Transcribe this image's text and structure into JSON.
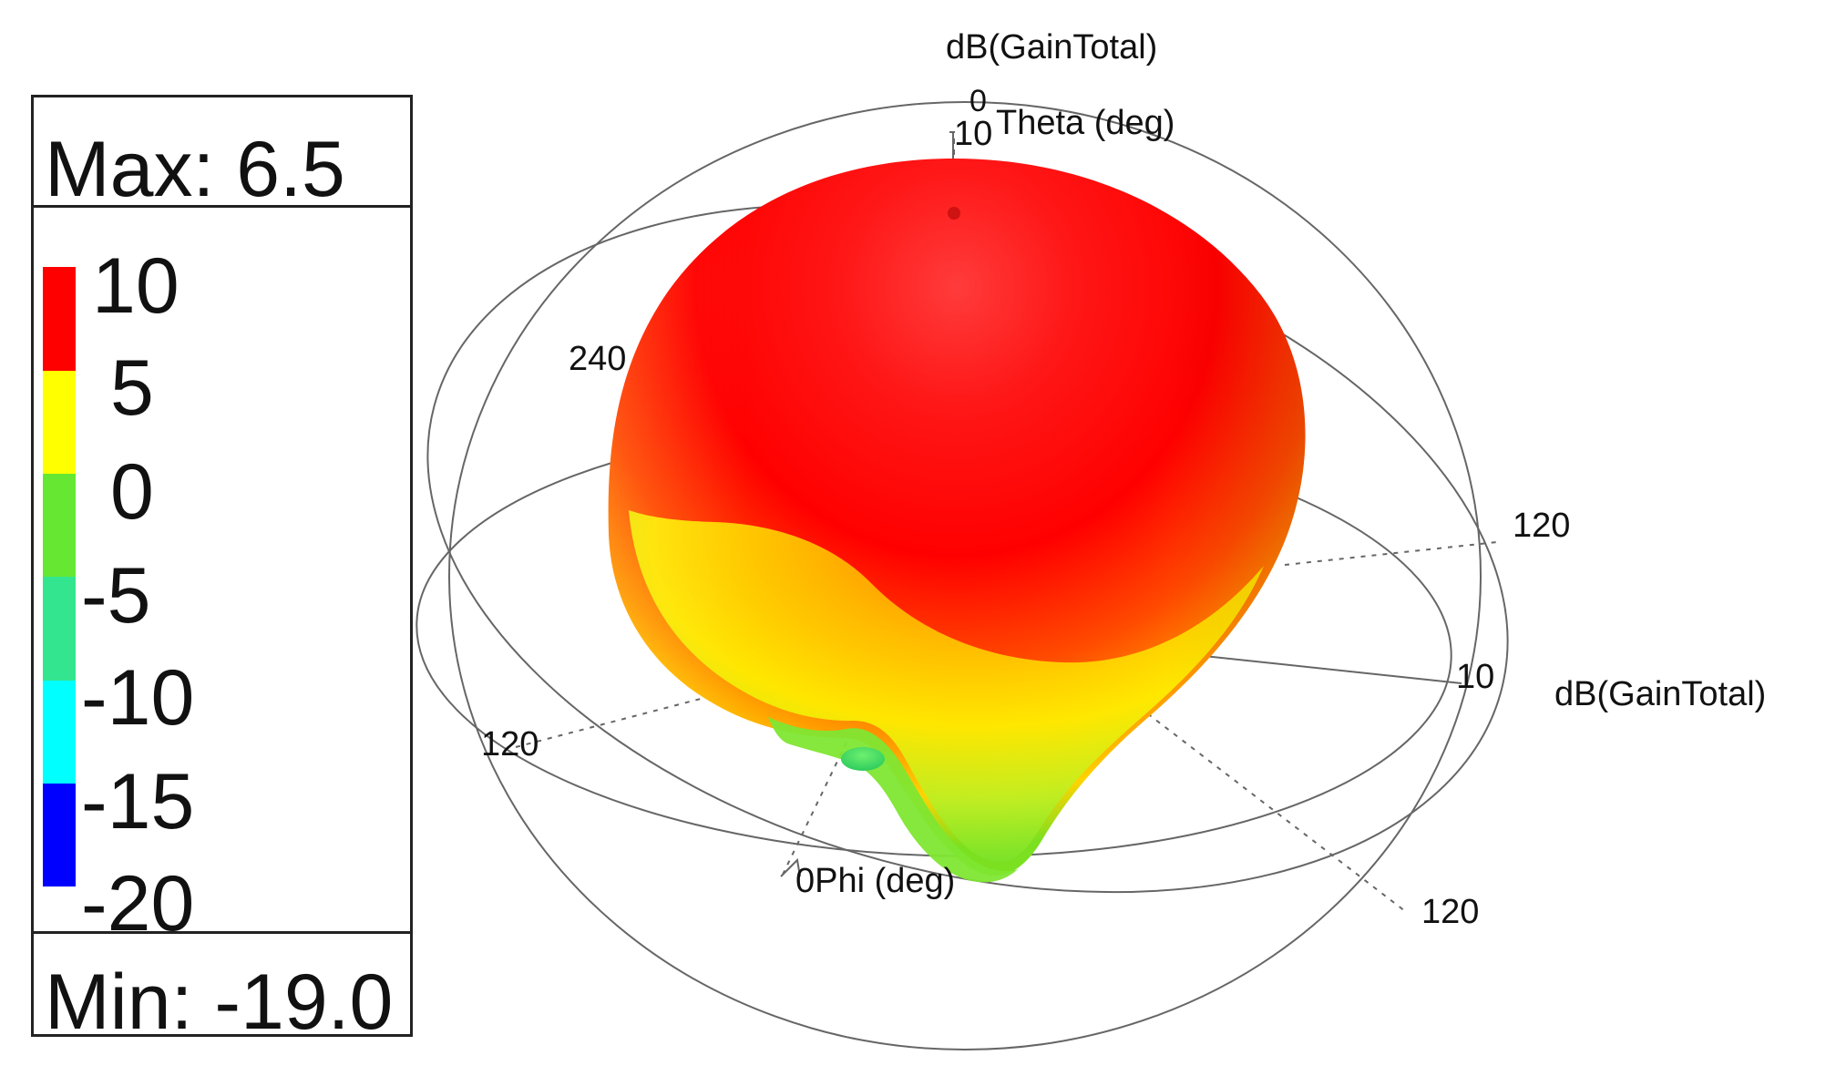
{
  "legend": {
    "max_label": "Max: 6.5",
    "min_label": "Min: -19.0",
    "scale_values": [
      "10",
      "5",
      "0",
      "-5",
      "-10",
      "-15",
      "-20"
    ],
    "scale_colors": [
      "#ff0000",
      "#ffff00",
      "#66e833",
      "#33e58f",
      "#00ffff",
      "#0000ff"
    ]
  },
  "axes": {
    "z_title": "dB(GainTotal)",
    "theta_zero": "0",
    "theta_label": "Theta (deg)",
    "theta_ten": "10",
    "left_240": "240",
    "right_120": "120",
    "right_ten": "10",
    "right_db_label": "dB(GainTotal)",
    "left_120": "120",
    "bottom_phi": "0Phi (deg)",
    "bottom_right_120": "120"
  },
  "chart_data": {
    "type": "3d-radiation-pattern",
    "quantity": "dB(GainTotal)",
    "max": 6.5,
    "min": -19.0,
    "scale": [
      10,
      5,
      0,
      -5,
      -10,
      -15,
      -20
    ],
    "colors": {
      "high": "#ff0000",
      "mid": "#ffff00",
      "low": "#66e833"
    }
  }
}
